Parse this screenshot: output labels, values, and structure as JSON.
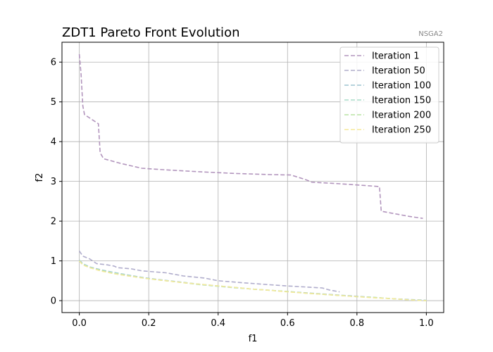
{
  "chart_data": {
    "type": "line",
    "title": "ZDT1 Pareto Front Evolution",
    "subtitle": "NSGA2",
    "xlabel": "f1",
    "ylabel": "f2",
    "xlim": [
      -0.05,
      1.05
    ],
    "ylim": [
      -0.3,
      6.5
    ],
    "xticks": [
      0.0,
      0.2,
      0.4,
      0.6,
      0.8,
      1.0
    ],
    "xtick_labels": [
      "0.0",
      "0.2",
      "0.4",
      "0.6",
      "0.8",
      "1.0"
    ],
    "yticks": [
      0,
      1,
      2,
      3,
      4,
      5,
      6
    ],
    "ytick_labels": [
      "0",
      "1",
      "2",
      "3",
      "4",
      "5",
      "6"
    ],
    "grid": true,
    "legend_position": "top-right",
    "line_style": "dashed",
    "series": [
      {
        "name": "Iteration 1",
        "color": "#b295bd",
        "x": [
          0.0,
          0.005,
          0.01,
          0.015,
          0.055,
          0.06,
          0.07,
          0.12,
          0.18,
          0.25,
          0.35,
          0.45,
          0.55,
          0.61,
          0.65,
          0.67,
          0.75,
          0.8,
          0.865,
          0.87,
          0.9,
          0.95,
          0.99
        ],
        "y": [
          6.2,
          5.7,
          4.9,
          4.68,
          4.45,
          3.72,
          3.57,
          3.45,
          3.33,
          3.29,
          3.24,
          3.2,
          3.17,
          3.16,
          3.05,
          2.98,
          2.94,
          2.91,
          2.87,
          2.25,
          2.2,
          2.12,
          2.07
        ]
      },
      {
        "name": "Iteration 50",
        "color": "#b0adcc",
        "x": [
          0.0,
          0.01,
          0.03,
          0.05,
          0.08,
          0.1,
          0.11,
          0.15,
          0.18,
          0.25,
          0.3,
          0.36,
          0.4,
          0.47,
          0.55,
          0.6,
          0.7,
          0.72,
          0.75
        ],
        "y": [
          1.25,
          1.12,
          1.05,
          0.93,
          0.9,
          0.87,
          0.83,
          0.8,
          0.75,
          0.7,
          0.62,
          0.57,
          0.5,
          0.45,
          0.4,
          0.37,
          0.32,
          0.27,
          0.22
        ]
      },
      {
        "name": "Iteration 100",
        "color": "#9ec4d0",
        "x": [
          0.0,
          0.01,
          0.03,
          0.06,
          0.1,
          0.15,
          0.2,
          0.25,
          0.3,
          0.35,
          0.4,
          0.45,
          0.5,
          0.55,
          0.6,
          0.65,
          0.7,
          0.75,
          0.8,
          0.85,
          0.9,
          0.95,
          1.0
        ],
        "y": [
          1.02,
          0.93,
          0.85,
          0.78,
          0.71,
          0.63,
          0.56,
          0.51,
          0.46,
          0.41,
          0.37,
          0.33,
          0.29,
          0.26,
          0.23,
          0.2,
          0.17,
          0.14,
          0.11,
          0.08,
          0.05,
          0.03,
          0.01
        ]
      },
      {
        "name": "Iteration 150",
        "color": "#a8dcc8",
        "x": [
          0.0,
          0.01,
          0.03,
          0.06,
          0.1,
          0.15,
          0.2,
          0.25,
          0.3,
          0.35,
          0.4,
          0.45,
          0.5,
          0.55,
          0.6,
          0.65,
          0.7,
          0.75,
          0.8,
          0.85,
          0.9,
          0.95,
          1.0
        ],
        "y": [
          1.01,
          0.92,
          0.84,
          0.77,
          0.7,
          0.62,
          0.55,
          0.5,
          0.45,
          0.4,
          0.36,
          0.32,
          0.29,
          0.26,
          0.23,
          0.19,
          0.16,
          0.13,
          0.1,
          0.08,
          0.05,
          0.02,
          0.0
        ]
      },
      {
        "name": "Iteration 200",
        "color": "#b9e3a3",
        "x": [
          0.0,
          0.01,
          0.03,
          0.06,
          0.1,
          0.15,
          0.2,
          0.25,
          0.3,
          0.35,
          0.4,
          0.45,
          0.5,
          0.55,
          0.6,
          0.65,
          0.7,
          0.75,
          0.8,
          0.85,
          0.9,
          0.95,
          1.0
        ],
        "y": [
          1.0,
          0.9,
          0.83,
          0.76,
          0.68,
          0.61,
          0.55,
          0.5,
          0.45,
          0.41,
          0.37,
          0.33,
          0.29,
          0.26,
          0.23,
          0.19,
          0.16,
          0.13,
          0.1,
          0.08,
          0.05,
          0.02,
          0.0
        ]
      },
      {
        "name": "Iteration 250",
        "color": "#f5e99a",
        "x": [
          0.0,
          0.01,
          0.03,
          0.06,
          0.1,
          0.15,
          0.2,
          0.25,
          0.3,
          0.35,
          0.4,
          0.45,
          0.5,
          0.55,
          0.6,
          0.65,
          0.7,
          0.75,
          0.8,
          0.85,
          0.9,
          0.95,
          1.0
        ],
        "y": [
          1.0,
          0.9,
          0.83,
          0.75,
          0.68,
          0.61,
          0.55,
          0.5,
          0.45,
          0.41,
          0.37,
          0.33,
          0.29,
          0.26,
          0.22,
          0.19,
          0.16,
          0.13,
          0.1,
          0.07,
          0.05,
          0.02,
          0.0
        ]
      }
    ]
  }
}
